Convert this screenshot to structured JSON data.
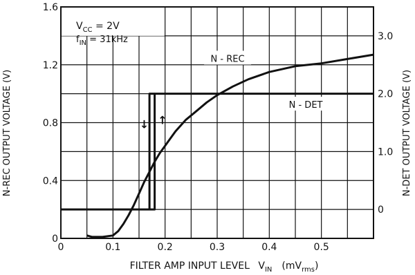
{
  "chart_data": {
    "type": "line",
    "xlabel": {
      "main": "FILTER AMP INPUT LEVEL",
      "var": "V",
      "var_sub": "IN",
      "unit_open": "(mV",
      "unit_sub": "rms",
      "unit_close": ")"
    },
    "ylabel": "N-REC OUTPUT VOLTAGE   (V)",
    "y2label": "N-DET OUTPUT VOLTAGE   (V)",
    "xlim": [
      0,
      0.6
    ],
    "ylim": [
      0,
      1.6
    ],
    "y2lim": [
      -0.5,
      3.5
    ],
    "grid": true,
    "x_ticks": [
      {
        "value": 0,
        "label": "0"
      },
      {
        "value": 0.1,
        "label": "0.1"
      },
      {
        "value": 0.2,
        "label": "0.2"
      },
      {
        "value": 0.3,
        "label": "0.3"
      },
      {
        "value": 0.4,
        "label": "0.4"
      },
      {
        "value": 0.5,
        "label": "0.5"
      }
    ],
    "y_ticks": [
      {
        "value": 0,
        "label": "0"
      },
      {
        "value": 0.4,
        "label": "0.4"
      },
      {
        "value": 0.8,
        "label": "0.8"
      },
      {
        "value": 1.2,
        "label": "1.2"
      },
      {
        "value": 1.6,
        "label": "1.6"
      }
    ],
    "y2_ticks": [
      {
        "value": 0,
        "label": "0"
      },
      {
        "value": 1.0,
        "label": "1.0"
      },
      {
        "value": 2.0,
        "label": "2.0"
      },
      {
        "value": 3.0,
        "label": "3.0"
      }
    ],
    "conditions": [
      {
        "var": "V",
        "sub": "CC",
        "value": " = 2V"
      },
      {
        "var": "f",
        "sub": "IN",
        "value": " = 31kHz"
      }
    ],
    "series": [
      {
        "name": "N - REC",
        "axis": "left",
        "x": [
          0.05,
          0.06,
          0.08,
          0.1,
          0.11,
          0.12,
          0.13,
          0.14,
          0.15,
          0.16,
          0.17,
          0.18,
          0.19,
          0.2,
          0.21,
          0.22,
          0.24,
          0.26,
          0.28,
          0.3,
          0.33,
          0.36,
          0.4,
          0.45,
          0.5,
          0.55,
          0.6
        ],
        "y": [
          0.02,
          0.01,
          0.01,
          0.02,
          0.05,
          0.1,
          0.16,
          0.23,
          0.31,
          0.39,
          0.46,
          0.53,
          0.59,
          0.64,
          0.69,
          0.74,
          0.82,
          0.88,
          0.94,
          0.99,
          1.05,
          1.1,
          1.15,
          1.19,
          1.21,
          1.24,
          1.27
        ]
      },
      {
        "name": "N - DET",
        "axis": "right",
        "x": [
          0,
          0.18,
          0.18,
          0.6
        ],
        "y": [
          0,
          0,
          2.0,
          2.0
        ]
      },
      {
        "name": "N - DET falling",
        "axis": "right",
        "x": [
          0.17,
          0.17,
          0.18
        ],
        "y": [
          0,
          2.0,
          2.0
        ]
      }
    ],
    "annotations": [
      {
        "text": "N - REC",
        "x": 0.32,
        "y": 1.23,
        "axis": "left"
      },
      {
        "text": "N - DET",
        "x": 0.47,
        "y": 1.78,
        "axis": "right"
      }
    ],
    "hysteresis_arrows": [
      {
        "direction": "down",
        "symbol": "↓",
        "x": 0.16,
        "y": 0.79
      },
      {
        "direction": "up",
        "symbol": "↑",
        "x": 0.195,
        "y": 0.82
      }
    ]
  }
}
